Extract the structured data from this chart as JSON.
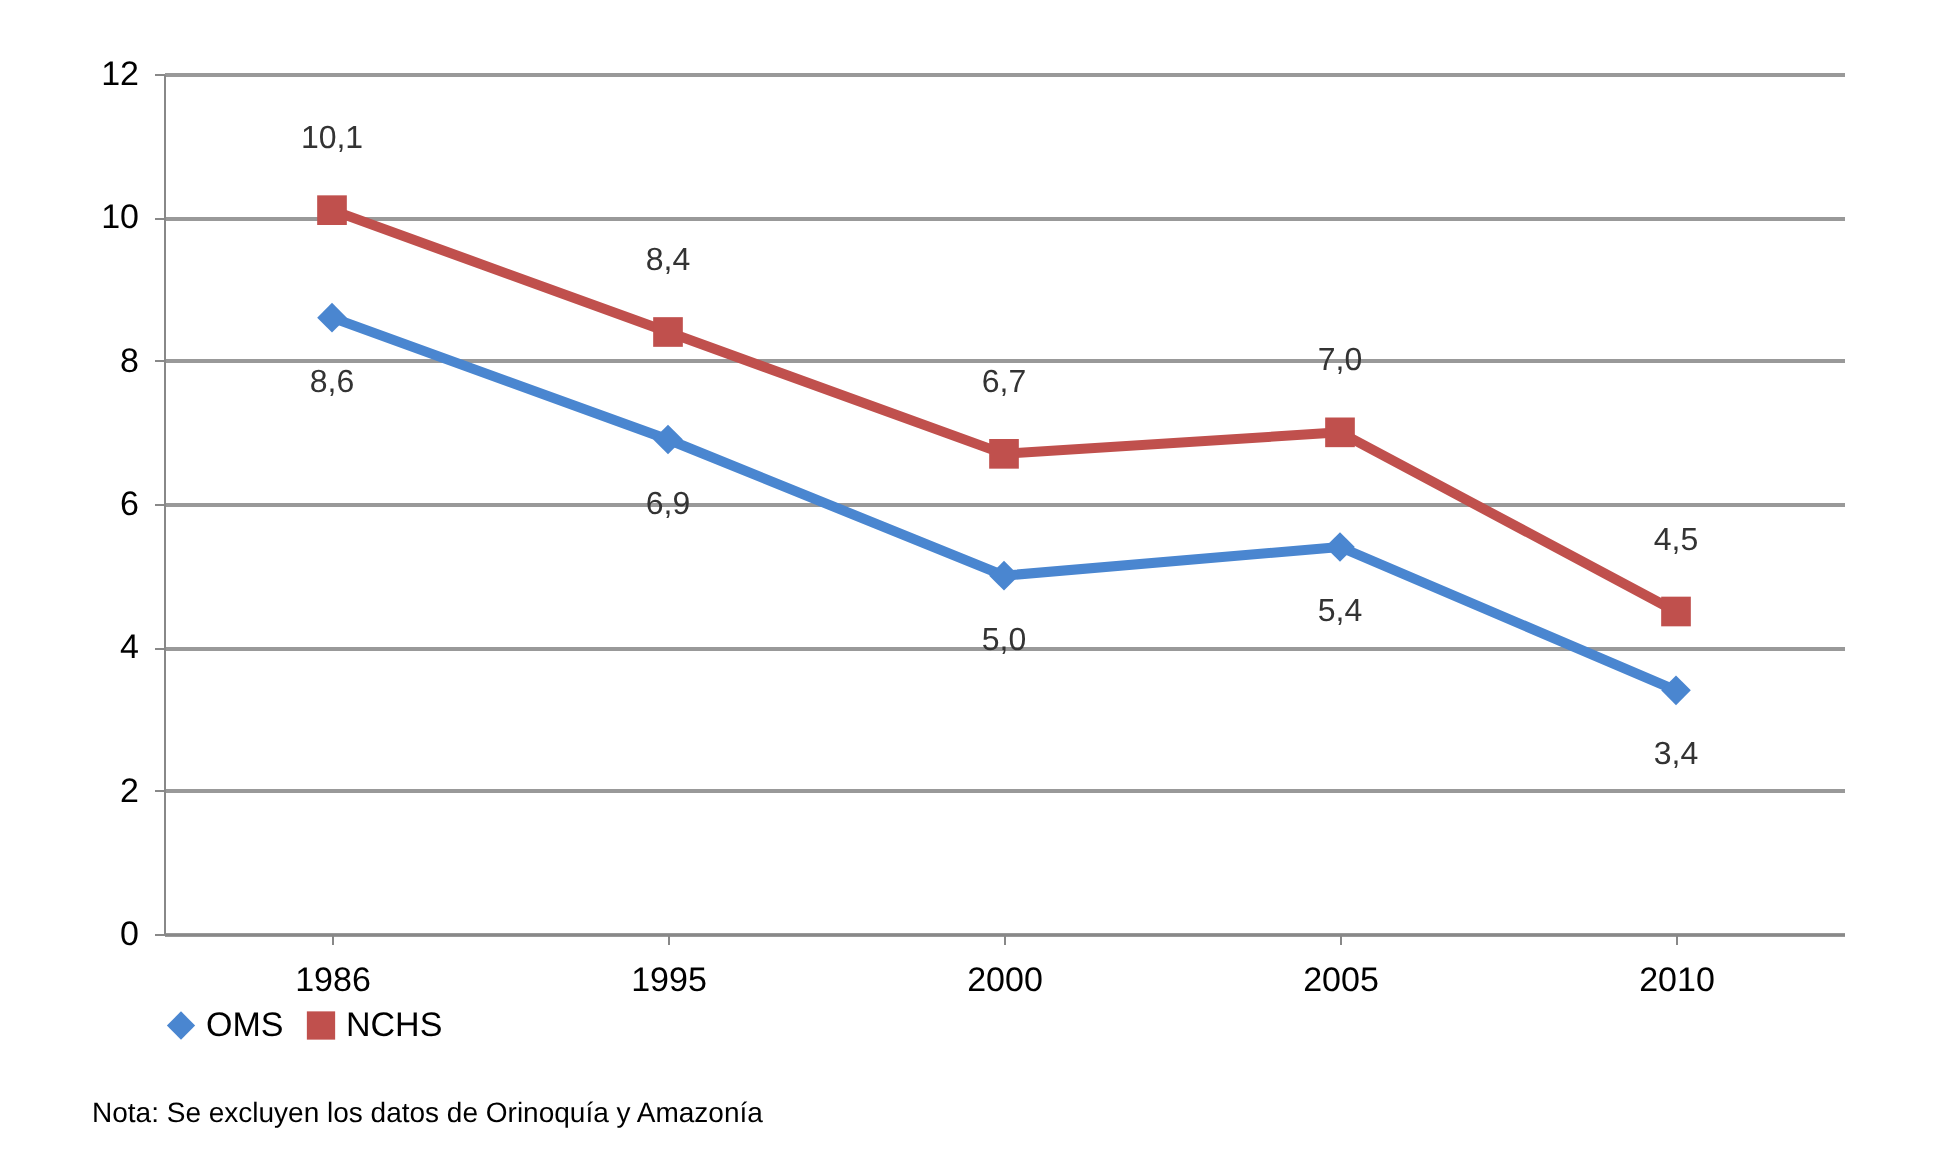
{
  "chart_data": {
    "type": "line",
    "categories": [
      "1986",
      "1995",
      "2000",
      "2005",
      "2010"
    ],
    "series": [
      {
        "name": "OMS",
        "color": "#4a86d0",
        "values": [
          8.6,
          6.9,
          5.0,
          5.4,
          3.4
        ],
        "marker": "diamond",
        "value_labels": [
          "8,6",
          "6,9",
          "5,0",
          "5,4",
          "3,4"
        ]
      },
      {
        "name": "NCHS",
        "color": "#c0504d",
        "values": [
          10.1,
          8.4,
          6.7,
          7.0,
          4.5
        ],
        "marker": "square",
        "value_labels": [
          "10,1",
          "8,4",
          "6,7",
          "7,0",
          "4,5"
        ]
      }
    ],
    "ylim": [
      0,
      12
    ],
    "yticks": [
      0,
      2,
      4,
      6,
      8,
      10,
      12
    ],
    "grid": "y",
    "legend": "bottom",
    "line_style": "solid",
    "annotations": [
      "Nota: Se excluyen los datos de Orinoquía y Amazonía"
    ]
  }
}
